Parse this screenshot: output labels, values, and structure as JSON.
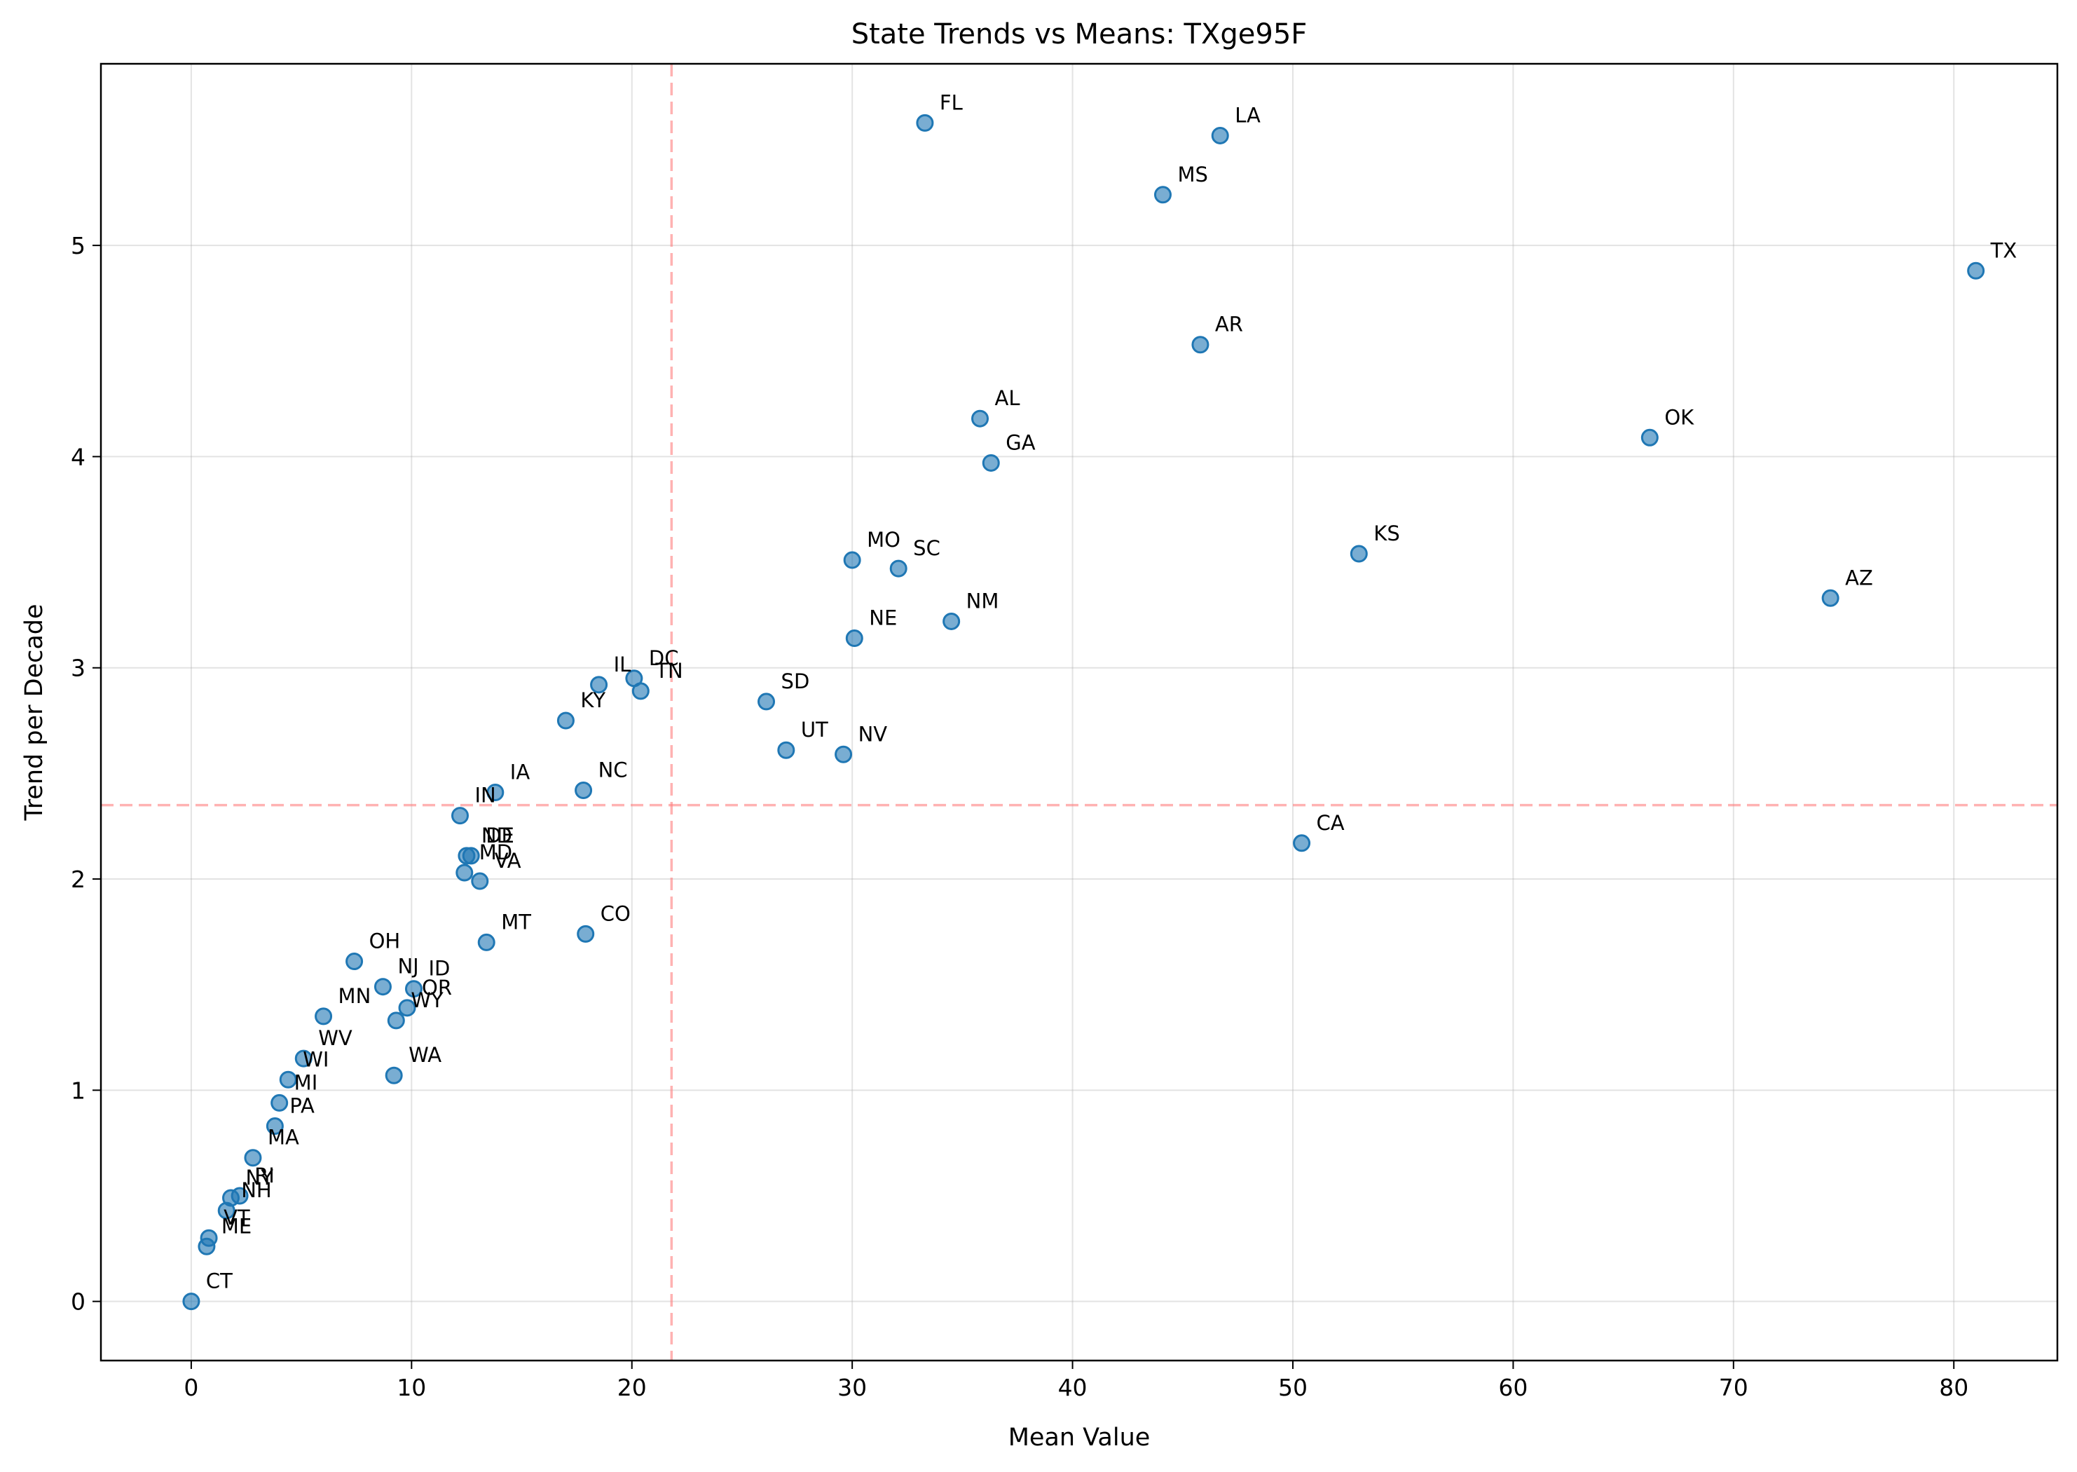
{
  "chart_data": {
    "type": "scatter",
    "title": "State Trends vs Means: TXge95F",
    "xlabel": "Mean Value",
    "ylabel": "Trend per Decade",
    "xlim": [
      -4.1,
      84.7
    ],
    "ylim": [
      -0.28,
      5.86
    ],
    "xticks": [
      0,
      10,
      20,
      30,
      40,
      50,
      60,
      70,
      80
    ],
    "yticks": [
      0,
      1,
      2,
      3,
      4,
      5
    ],
    "grid": true,
    "mean_x": 21.8,
    "mean_y": 2.35,
    "colors": {
      "point": "#1f77b4",
      "mean_line": "#ff7f7f"
    },
    "points": [
      {
        "label": "TX",
        "x": 81.0,
        "y": 4.88
      },
      {
        "label": "AZ",
        "x": 74.4,
        "y": 3.33
      },
      {
        "label": "OK",
        "x": 66.2,
        "y": 4.09
      },
      {
        "label": "KS",
        "x": 53.0,
        "y": 3.54
      },
      {
        "label": "CA",
        "x": 50.4,
        "y": 2.17
      },
      {
        "label": "LA",
        "x": 46.7,
        "y": 5.52
      },
      {
        "label": "AR",
        "x": 45.8,
        "y": 4.53
      },
      {
        "label": "MS",
        "x": 44.1,
        "y": 5.24
      },
      {
        "label": "GA",
        "x": 36.3,
        "y": 3.97
      },
      {
        "label": "AL",
        "x": 35.8,
        "y": 4.18
      },
      {
        "label": "NM",
        "x": 34.5,
        "y": 3.22
      },
      {
        "label": "FL",
        "x": 33.3,
        "y": 5.58
      },
      {
        "label": "SC",
        "x": 32.1,
        "y": 3.47
      },
      {
        "label": "NE",
        "x": 30.1,
        "y": 3.14
      },
      {
        "label": "MO",
        "x": 30.0,
        "y": 3.51
      },
      {
        "label": "NV",
        "x": 29.6,
        "y": 2.59
      },
      {
        "label": "UT",
        "x": 27.0,
        "y": 2.61
      },
      {
        "label": "SD",
        "x": 26.1,
        "y": 2.84
      },
      {
        "label": "TN",
        "x": 20.4,
        "y": 2.89
      },
      {
        "label": "DC",
        "x": 20.1,
        "y": 2.95
      },
      {
        "label": "IL",
        "x": 18.5,
        "y": 2.92
      },
      {
        "label": "CO",
        "x": 17.9,
        "y": 1.74
      },
      {
        "label": "NC",
        "x": 17.8,
        "y": 2.42
      },
      {
        "label": "KY",
        "x": 17.0,
        "y": 2.75
      },
      {
        "label": "IA",
        "x": 13.8,
        "y": 2.41
      },
      {
        "label": "MT",
        "x": 13.4,
        "y": 1.7
      },
      {
        "label": "VA",
        "x": 13.1,
        "y": 1.99
      },
      {
        "label": "DE",
        "x": 12.7,
        "y": 2.11
      },
      {
        "label": "ND",
        "x": 12.5,
        "y": 2.11
      },
      {
        "label": "MD",
        "x": 12.4,
        "y": 2.03
      },
      {
        "label": "IN",
        "x": 12.2,
        "y": 2.3
      },
      {
        "label": "ID",
        "x": 10.1,
        "y": 1.48
      },
      {
        "label": "OR",
        "x": 9.8,
        "y": 1.39
      },
      {
        "label": "WY",
        "x": 9.3,
        "y": 1.33
      },
      {
        "label": "WA",
        "x": 9.2,
        "y": 1.07
      },
      {
        "label": "NJ",
        "x": 8.7,
        "y": 1.49
      },
      {
        "label": "OH",
        "x": 7.4,
        "y": 1.61
      },
      {
        "label": "MN",
        "x": 6.0,
        "y": 1.35
      },
      {
        "label": "WV",
        "x": 5.1,
        "y": 1.15
      },
      {
        "label": "WI",
        "x": 4.4,
        "y": 1.05
      },
      {
        "label": "MI",
        "x": 4.0,
        "y": 0.94
      },
      {
        "label": "PA",
        "x": 3.8,
        "y": 0.83
      },
      {
        "label": "MA",
        "x": 2.8,
        "y": 0.68
      },
      {
        "label": "RI",
        "x": 2.2,
        "y": 0.5
      },
      {
        "label": "NY",
        "x": 1.8,
        "y": 0.49
      },
      {
        "label": "NH",
        "x": 1.6,
        "y": 0.43
      },
      {
        "label": "VT",
        "x": 0.8,
        "y": 0.3
      },
      {
        "label": "ME",
        "x": 0.7,
        "y": 0.26
      },
      {
        "label": "CT",
        "x": 0.0,
        "y": 0.0
      }
    ]
  }
}
